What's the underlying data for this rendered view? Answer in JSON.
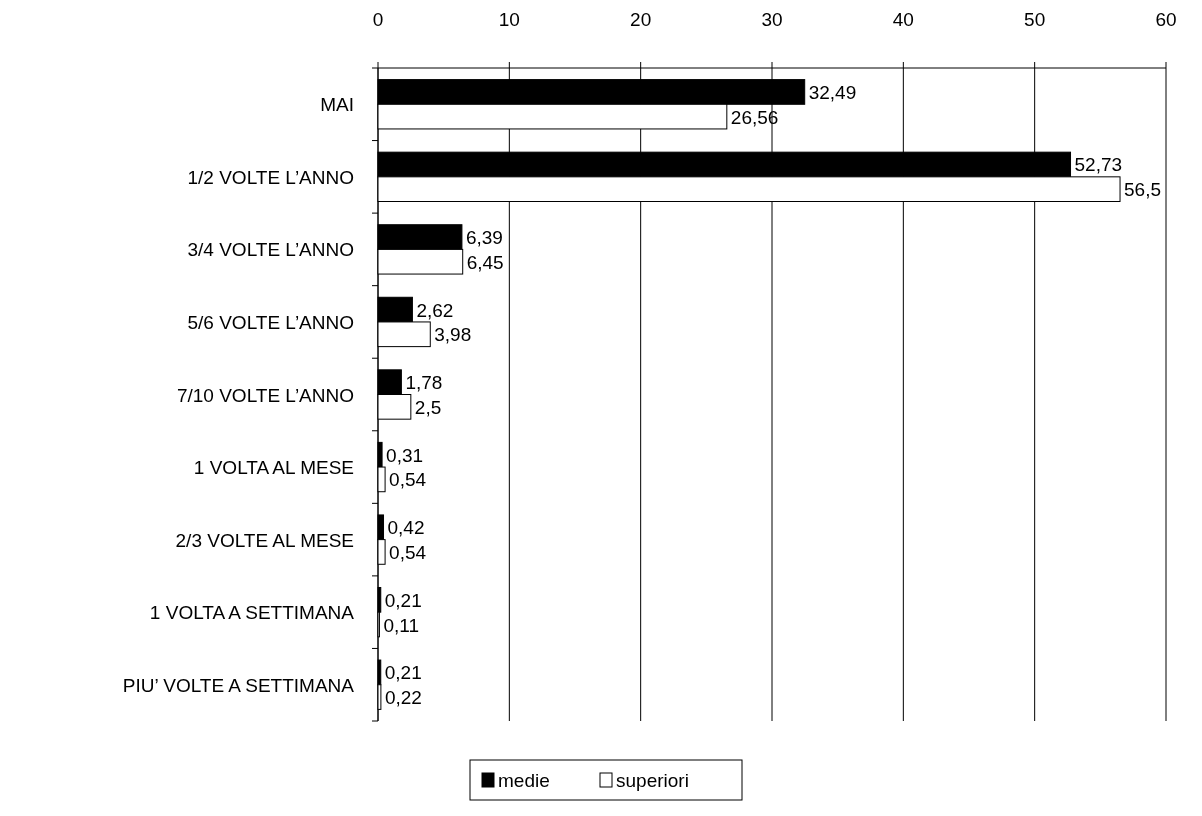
{
  "chart_data": {
    "type": "bar",
    "orientation": "horizontal",
    "categories": [
      "MAI",
      "1/2 VOLTE L’ANNO",
      "3/4 VOLTE L’ANNO",
      "5/6 VOLTE L’ANNO",
      "7/10 VOLTE L’ANNO",
      "1 VOLTA AL MESE",
      "2/3 VOLTE AL MESE",
      "1 VOLTA A SETTIMANA",
      "PIU’ VOLTE A SETTIMANA"
    ],
    "series": [
      {
        "name": "medie",
        "color": "#000000",
        "values": [
          32.49,
          52.73,
          6.39,
          2.62,
          1.78,
          0.31,
          0.42,
          0.21,
          0.21
        ],
        "value_labels": [
          "32,49",
          "52,73",
          "6,39",
          "2,62",
          "1,78",
          "0,31",
          "0,42",
          "0,21",
          "0,21"
        ]
      },
      {
        "name": "superiori",
        "color": "#ffffff",
        "values": [
          26.56,
          56.5,
          6.45,
          3.98,
          2.5,
          0.54,
          0.54,
          0.11,
          0.22
        ],
        "value_labels": [
          "26,56",
          "56,5",
          "6,45",
          "3,98",
          "2,5",
          "0,54",
          "0,54",
          "0,11",
          "0,22"
        ]
      }
    ],
    "xlim": [
      0,
      60
    ],
    "xticks": [
      0,
      10,
      20,
      30,
      40,
      50,
      60
    ],
    "grid": "x",
    "legend": "bottom"
  }
}
